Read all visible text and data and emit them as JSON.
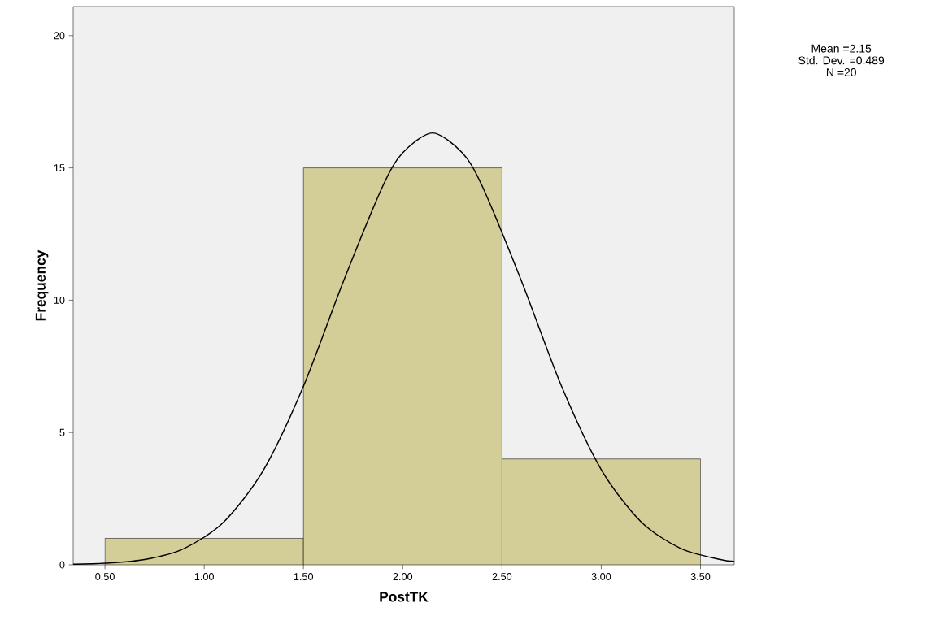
{
  "chart_data": {
    "type": "histogram",
    "xlabel": "PostTK",
    "ylabel": "Frequency",
    "bins": [
      0.5,
      1.5,
      2.5,
      3.5
    ],
    "values": [
      1,
      15,
      4
    ],
    "color": "#d3ce98",
    "series": [
      {
        "type": "line",
        "color": "#000000",
        "x": [
          0.34,
          0.5,
          0.7,
          0.9,
          1.1,
          1.3,
          1.5,
          1.7,
          1.9,
          2.0,
          2.15,
          2.3,
          2.4,
          2.6,
          2.8,
          3.0,
          3.2,
          3.4,
          3.6,
          3.67
        ],
        "values": [
          0.02,
          0.06,
          0.2,
          0.62,
          1.63,
          3.6,
          6.75,
          10.69,
          14.32,
          15.57,
          16.32,
          15.57,
          14.32,
          10.69,
          6.75,
          3.6,
          1.63,
          0.62,
          0.2,
          0.13
        ]
      }
    ],
    "xlim": [
      0.34,
      3.67
    ],
    "ylim": [
      0,
      21.1
    ],
    "xticks": [
      {
        "value": 0.5,
        "label": "0.50"
      },
      {
        "value": 1.0,
        "label": "1.00"
      },
      {
        "value": 1.5,
        "label": "1.50"
      },
      {
        "value": 2.0,
        "label": "2.00"
      },
      {
        "value": 2.5,
        "label": "2.50"
      },
      {
        "value": 3.0,
        "label": "3.00"
      },
      {
        "value": 3.5,
        "label": "3.50"
      }
    ],
    "yticks": [
      0,
      5,
      10,
      15,
      20
    ],
    "grid": false,
    "marker": "none",
    "annotations": [
      "Mean =2.15",
      "Std. Dev. =0.489",
      "N =20"
    ]
  }
}
